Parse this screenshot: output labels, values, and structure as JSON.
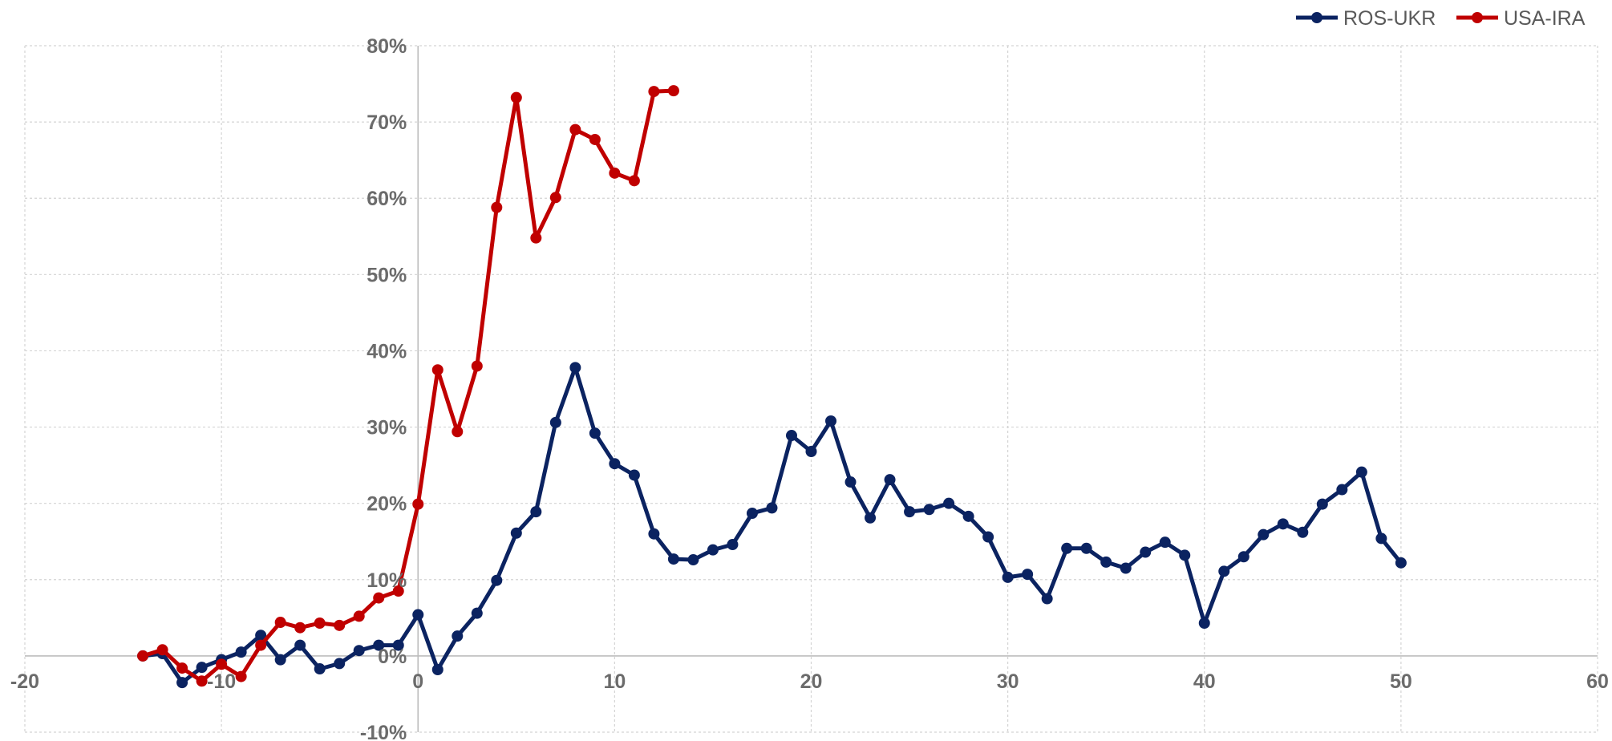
{
  "chart_data": {
    "type": "line",
    "title": "",
    "xlabel": "",
    "ylabel": "",
    "xlim": [
      -20,
      60
    ],
    "ylim": [
      -10,
      80
    ],
    "x_ticks": [
      -20,
      -10,
      0,
      10,
      20,
      30,
      40,
      50,
      60
    ],
    "y_ticks": [
      -10,
      0,
      10,
      20,
      30,
      40,
      50,
      60,
      70,
      80
    ],
    "x_tick_labels": [
      "-20",
      "-10",
      "0",
      "10",
      "20",
      "30",
      "40",
      "50",
      "60"
    ],
    "y_tick_labels": [
      "-10%",
      "0%",
      "10%",
      "20%",
      "30%",
      "40%",
      "50%",
      "60%",
      "70%",
      "80%"
    ],
    "y_unit": "%",
    "grid": true,
    "legend_position": "top-right",
    "series": [
      {
        "name": "ROS-UKR",
        "color": "#0b2361",
        "x": [
          -14,
          -13,
          -12,
          -11,
          -10,
          -9,
          -8,
          -7,
          -6,
          -5,
          -4,
          -3,
          -2,
          -1,
          0,
          1,
          2,
          3,
          4,
          5,
          6,
          7,
          8,
          9,
          10,
          11,
          12,
          13,
          14,
          15,
          16,
          17,
          18,
          19,
          20,
          21,
          22,
          23,
          24,
          25,
          26,
          27,
          28,
          29,
          30,
          31,
          32,
          33,
          34,
          35,
          36,
          37,
          38,
          39,
          40,
          41,
          42,
          43,
          44,
          45,
          46,
          47,
          48,
          49,
          50
        ],
        "values": [
          0,
          0.3,
          -3.5,
          -1.5,
          -0.5,
          0.5,
          2.7,
          -0.5,
          1.4,
          -1.7,
          -1.0,
          0.7,
          1.4,
          1.4,
          5.4,
          -1.8,
          2.6,
          5.6,
          9.9,
          16.1,
          18.9,
          30.6,
          37.8,
          29.2,
          25.2,
          23.7,
          16.0,
          12.7,
          12.6,
          13.9,
          14.6,
          18.7,
          19.4,
          28.9,
          26.8,
          30.8,
          22.8,
          18.1,
          23.1,
          18.9,
          19.2,
          20.0,
          18.3,
          15.6,
          10.3,
          10.7,
          7.5,
          14.1,
          14.1,
          12.3,
          11.5,
          13.6,
          14.9,
          13.2,
          4.3,
          11.1,
          13.0,
          15.9,
          17.3,
          16.2,
          19.9,
          21.8,
          24.1,
          15.4,
          12.2
        ]
      },
      {
        "name": "USA-IRA",
        "color": "#c00000",
        "x": [
          -14,
          -13,
          -12,
          -11,
          -10,
          -9,
          -8,
          -7,
          -6,
          -5,
          -4,
          -3,
          -2,
          -1,
          0,
          1,
          2,
          3,
          4,
          5,
          6,
          7,
          8,
          9,
          10,
          11,
          12,
          13
        ],
        "values": [
          0,
          0.8,
          -1.6,
          -3.3,
          -1.1,
          -2.7,
          1.4,
          4.4,
          3.7,
          4.3,
          4.0,
          5.2,
          7.6,
          8.5,
          19.9,
          37.5,
          29.4,
          38.0,
          58.8,
          73.2,
          54.8,
          60.1,
          69.0,
          67.7,
          63.3,
          62.3,
          74.0,
          74.1
        ]
      }
    ]
  }
}
